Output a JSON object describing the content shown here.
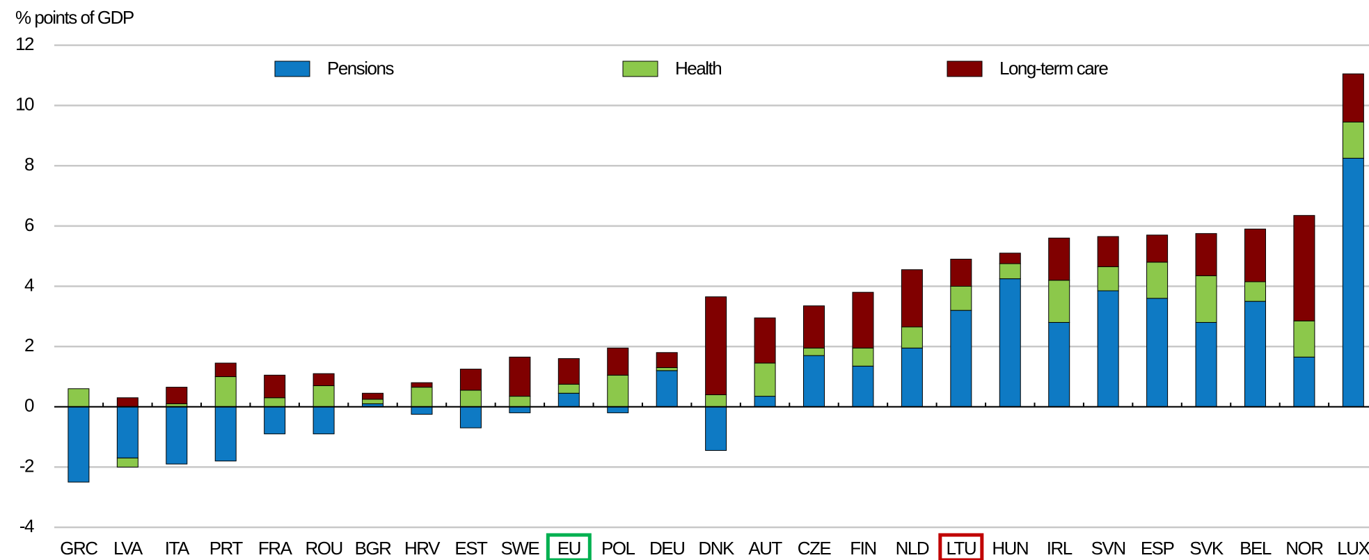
{
  "chart_data": {
    "type": "stacked_bar",
    "ylabel": "% points of GDP",
    "categories": [
      "GRC",
      "LVA",
      "ITA",
      "PRT",
      "FRA",
      "ROU",
      "BGR",
      "HRV",
      "EST",
      "SWE",
      "EU",
      "POL",
      "DEU",
      "DNK",
      "AUT",
      "CZE",
      "FIN",
      "NLD",
      "LTU",
      "HUN",
      "IRL",
      "SVN",
      "ESP",
      "SVK",
      "BEL",
      "NOR",
      "LUX"
    ],
    "series": [
      {
        "name": "Pensions",
        "color": "#0e7ac4",
        "values": [
          -2.5,
          -1.7,
          -1.9,
          -1.8,
          -0.9,
          -0.9,
          0.1,
          -0.25,
          -0.7,
          -0.2,
          0.45,
          -0.2,
          1.2,
          -1.45,
          0.35,
          1.7,
          1.35,
          1.95,
          3.2,
          4.25,
          2.8,
          3.85,
          3.6,
          2.8,
          3.5,
          1.65,
          8.25
        ]
      },
      {
        "name": "Health",
        "color": "#8cc84b",
        "values": [
          0.6,
          -0.3,
          0.1,
          1.0,
          0.3,
          0.7,
          0.15,
          0.65,
          0.55,
          0.35,
          0.3,
          1.05,
          0.1,
          0.4,
          1.1,
          0.25,
          0.6,
          0.7,
          0.8,
          0.5,
          1.4,
          0.8,
          1.2,
          1.55,
          0.65,
          1.2,
          1.2
        ]
      },
      {
        "name": "Long-term care",
        "color": "#800000",
        "values": [
          0,
          0.3,
          0.55,
          0.45,
          0.75,
          0.4,
          0.2,
          0.15,
          0.7,
          1.3,
          0.85,
          0.9,
          0.5,
          3.25,
          1.5,
          1.4,
          1.85,
          1.9,
          0.9,
          0.35,
          1.4,
          1.0,
          0.9,
          1.4,
          1.75,
          3.5,
          1.6
        ]
      }
    ],
    "ylim": [
      -4,
      12
    ],
    "yticks": [
      -4,
      -2,
      0,
      2,
      4,
      6,
      8,
      10,
      12
    ],
    "grid": true,
    "legend": "top",
    "highlights": [
      {
        "category": "EU",
        "color": "#00b050"
      },
      {
        "category": "LTU",
        "color": "#c00000"
      }
    ]
  }
}
